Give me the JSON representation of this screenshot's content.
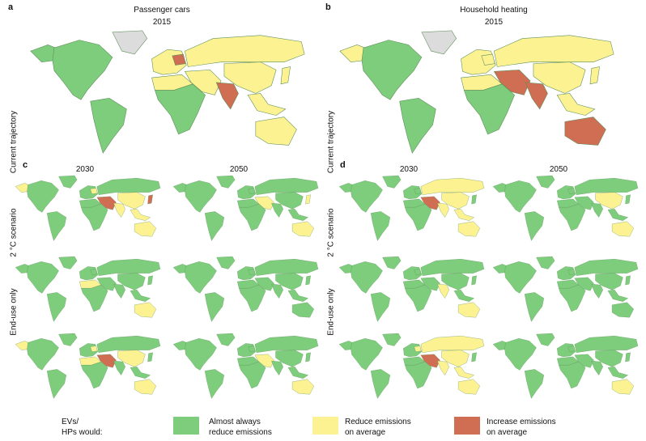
{
  "colors": {
    "green": "#7dcd7c",
    "yellow": "#fdf292",
    "red": "#cf6e52",
    "grey": "#dcdcdc"
  },
  "panels": {
    "a": {
      "letter": "a",
      "title": "Passenger cars",
      "year": "2015"
    },
    "b": {
      "letter": "b",
      "title": "Household heating",
      "year": "2015"
    },
    "c": {
      "letter": "c",
      "col1": "2030",
      "col2": "2050"
    },
    "d": {
      "letter": "d",
      "col1": "2030",
      "col2": "2050"
    }
  },
  "row_labels": [
    "Current trajectory",
    "2 °C scenario",
    "End-use only"
  ],
  "legend": {
    "heading": [
      "EVs/",
      "HPs would:"
    ],
    "items": [
      {
        "label": [
          "Almost always",
          "reduce emissions"
        ],
        "color": "green"
      },
      {
        "label": [
          "Reduce emissions",
          "on average"
        ],
        "color": "yellow"
      },
      {
        "label": [
          "Increase emissions",
          "on average"
        ],
        "color": "red"
      }
    ]
  },
  "maps": {
    "a2015": {
      "na": "green",
      "alaska": "green",
      "greenland": "grey",
      "sa": "green",
      "europe": "yellow",
      "poland": "red",
      "africa": "green",
      "nafrica": "yellow",
      "me": "yellow",
      "russia": "yellow",
      "china": "yellow",
      "india": "red",
      "sea": "yellow",
      "australia": "yellow",
      "japan": "yellow"
    },
    "b2015": {
      "na": "green",
      "alaska": "yellow",
      "greenland": "grey",
      "sa": "green",
      "europe": "yellow",
      "poland": "yellow",
      "africa": "green",
      "nafrica": "yellow",
      "me": "red",
      "russia": "yellow",
      "china": "yellow",
      "india": "red",
      "sea": "yellow",
      "australia": "red",
      "japan": "yellow"
    },
    "c_ct_2030": {
      "na": "green",
      "alaska": "yellow",
      "greenland": "green",
      "sa": "green",
      "europe": "green",
      "poland": "yellow",
      "africa": "green",
      "nafrica": "green",
      "me": "red",
      "russia": "green",
      "china": "yellow",
      "india": "yellow",
      "sea": "yellow",
      "australia": "yellow",
      "japan": "red"
    },
    "c_ct_2050": {
      "na": "green",
      "alaska": "green",
      "greenland": "green",
      "sa": "green",
      "europe": "green",
      "poland": "green",
      "africa": "green",
      "nafrica": "green",
      "me": "yellow",
      "russia": "green",
      "china": "green",
      "india": "green",
      "sea": "green",
      "australia": "yellow",
      "japan": "yellow"
    },
    "c_2c_2030": {
      "na": "green",
      "alaska": "green",
      "greenland": "green",
      "sa": "green",
      "europe": "green",
      "poland": "green",
      "africa": "green",
      "nafrica": "yellow",
      "me": "green",
      "russia": "green",
      "china": "green",
      "india": "green",
      "sea": "green",
      "australia": "yellow",
      "japan": "green"
    },
    "c_2c_2050": {
      "na": "green",
      "alaska": "green",
      "greenland": "green",
      "sa": "green",
      "europe": "green",
      "poland": "green",
      "africa": "green",
      "nafrica": "green",
      "me": "green",
      "russia": "green",
      "china": "green",
      "india": "green",
      "sea": "green",
      "australia": "green",
      "japan": "green"
    },
    "c_eu_2030": {
      "na": "green",
      "alaska": "yellow",
      "greenland": "green",
      "sa": "green",
      "europe": "green",
      "poland": "yellow",
      "africa": "green",
      "nafrica": "yellow",
      "me": "red",
      "russia": "green",
      "china": "yellow",
      "india": "green",
      "sea": "green",
      "australia": "yellow",
      "japan": "green"
    },
    "c_eu_2050": {
      "na": "green",
      "alaska": "green",
      "greenland": "green",
      "sa": "green",
      "europe": "green",
      "poland": "green",
      "africa": "green",
      "nafrica": "green",
      "me": "yellow",
      "russia": "green",
      "china": "green",
      "india": "green",
      "sea": "green",
      "australia": "yellow",
      "japan": "green"
    },
    "d_ct_2030": {
      "na": "green",
      "alaska": "green",
      "greenland": "green",
      "sa": "green",
      "europe": "green",
      "poland": "green",
      "africa": "green",
      "nafrica": "green",
      "me": "red",
      "russia": "yellow",
      "china": "yellow",
      "india": "yellow",
      "sea": "yellow",
      "australia": "yellow",
      "japan": "green"
    },
    "d_ct_2050": {
      "na": "green",
      "alaska": "green",
      "greenland": "green",
      "sa": "green",
      "europe": "green",
      "poland": "green",
      "africa": "green",
      "nafrica": "green",
      "me": "green",
      "russia": "green",
      "china": "yellow",
      "india": "green",
      "sea": "green",
      "australia": "yellow",
      "japan": "green"
    },
    "d_2c_2030": {
      "na": "green",
      "alaska": "green",
      "greenland": "green",
      "sa": "green",
      "europe": "green",
      "poland": "green",
      "africa": "green",
      "nafrica": "green",
      "me": "green",
      "russia": "green",
      "china": "green",
      "india": "yellow",
      "sea": "green",
      "australia": "yellow",
      "japan": "green"
    },
    "d_2c_2050": {
      "na": "green",
      "alaska": "green",
      "greenland": "green",
      "sa": "green",
      "europe": "green",
      "poland": "green",
      "africa": "green",
      "nafrica": "green",
      "me": "green",
      "russia": "green",
      "china": "green",
      "india": "green",
      "sea": "green",
      "australia": "green",
      "japan": "green"
    },
    "d_eu_2030": {
      "na": "green",
      "alaska": "green",
      "greenland": "green",
      "sa": "green",
      "europe": "green",
      "poland": "yellow",
      "africa": "green",
      "nafrica": "green",
      "me": "red",
      "russia": "yellow",
      "china": "yellow",
      "india": "yellow",
      "sea": "yellow",
      "australia": "yellow",
      "japan": "green"
    },
    "d_eu_2050": {
      "na": "green",
      "alaska": "green",
      "greenland": "green",
      "sa": "green",
      "europe": "green",
      "poland": "green",
      "africa": "green",
      "nafrica": "green",
      "me": "green",
      "russia": "green",
      "china": "green",
      "india": "green",
      "sea": "green",
      "australia": "yellow",
      "japan": "green"
    }
  }
}
